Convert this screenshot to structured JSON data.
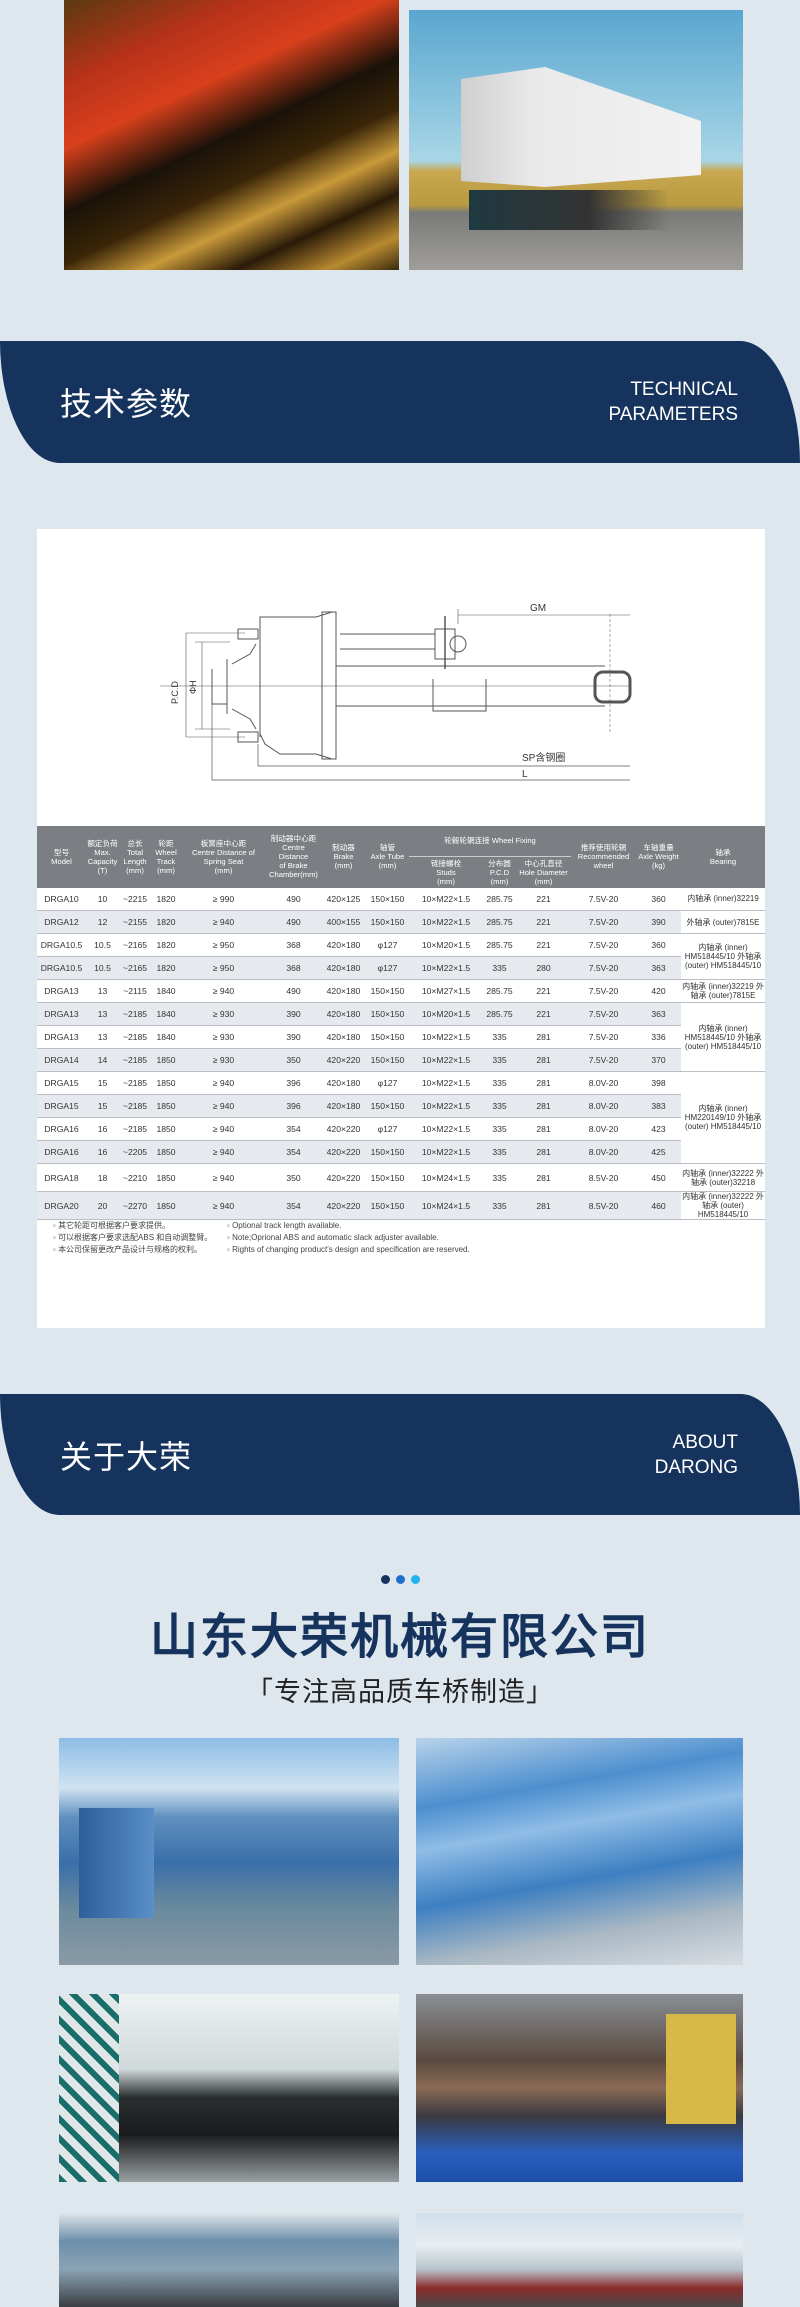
{
  "images": {
    "top_left": "red truck on highway",
    "top_right": "white refrigerated truck"
  },
  "tech_banner": {
    "cn": "技术参数",
    "en_line1": "TECHNICAL",
    "en_line2": "PARAMETERS"
  },
  "drawing": {
    "gm": "GM",
    "pcd": "P.C.D",
    "phi_h": "ΦH",
    "sp": "SP含钢圈",
    "l": "L"
  },
  "table": {
    "headers": {
      "model": [
        "型号",
        "Model"
      ],
      "capacity": [
        "额定负荷",
        "Max.",
        "Capacity",
        "(T)"
      ],
      "length": [
        "总长",
        "Total",
        "Length",
        "(mm)"
      ],
      "track": [
        "轮距",
        "Wheel",
        "Track",
        "(mm)"
      ],
      "spring": [
        "板簧座中心距",
        "Centre Distance of",
        "Spring Seat",
        "(mm)"
      ],
      "chamber": [
        "制动器中心距",
        "Centre Distance",
        "of Brake",
        "Chamber(mm)"
      ],
      "brake": [
        "制动器",
        "Brake",
        "(mm)"
      ],
      "tube": [
        "轴管",
        "Axle Tube",
        "(mm)"
      ],
      "wheel_fixing": "轮毂轮辋连接 Wheel Fixing",
      "studs": [
        "链接螺栓",
        "Studs",
        "(mm)"
      ],
      "pcd": [
        "分布圆",
        "P.C.D",
        "(mm)"
      ],
      "hole": [
        "中心孔直径",
        "Hole Diameter",
        "(mm)"
      ],
      "rec": [
        "推荐使用轮辋",
        "Recommended",
        "wheel"
      ],
      "weight": [
        "车轴重量",
        "Axle Weight",
        "(kg)"
      ],
      "bearing": [
        "轴承",
        "Bearing"
      ]
    },
    "rows": [
      [
        "DRGA10",
        "10",
        "~2215",
        "1820",
        "≥ 990",
        "490",
        "420×125",
        "150×150",
        "10×M22×1.5",
        "285.75",
        "221",
        "7.5V-20",
        "360"
      ],
      [
        "DRGA12",
        "12",
        "~2155",
        "1820",
        "≥ 940",
        "490",
        "400×155",
        "150×150",
        "10×M22×1.5",
        "285.75",
        "221",
        "7.5V-20",
        "390"
      ],
      [
        "DRGA10.5",
        "10.5",
        "~2165",
        "1820",
        "≥ 950",
        "368",
        "420×180",
        "φ127",
        "10×M20×1.5",
        "285.75",
        "221",
        "7.5V-20",
        "360"
      ],
      [
        "DRGA10.5",
        "10.5",
        "~2165",
        "1820",
        "≥ 950",
        "368",
        "420×180",
        "φ127",
        "10×M22×1.5",
        "335",
        "280",
        "7.5V-20",
        "363"
      ],
      [
        "DRGA13",
        "13",
        "~2115",
        "1840",
        "≥ 940",
        "490",
        "420×180",
        "150×150",
        "10×M27×1.5",
        "285.75",
        "221",
        "7.5V-20",
        "420"
      ],
      [
        "DRGA13",
        "13",
        "~2185",
        "1840",
        "≥ 930",
        "390",
        "420×180",
        "150×150",
        "10×M20×1.5",
        "285.75",
        "221",
        "7.5V-20",
        "363"
      ],
      [
        "DRGA13",
        "13",
        "~2185",
        "1840",
        "≥ 930",
        "390",
        "420×180",
        "150×150",
        "10×M22×1.5",
        "335",
        "281",
        "7.5V-20",
        "336"
      ],
      [
        "DRGA14",
        "14",
        "~2185",
        "1850",
        "≥ 930",
        "350",
        "420×220",
        "150×150",
        "10×M22×1.5",
        "335",
        "281",
        "7.5V-20",
        "370"
      ],
      [
        "DRGA15",
        "15",
        "~2185",
        "1850",
        "≥ 940",
        "396",
        "420×180",
        "φ127",
        "10×M22×1.5",
        "335",
        "281",
        "8.0V-20",
        "398"
      ],
      [
        "DRGA15",
        "15",
        "~2185",
        "1850",
        "≥ 940",
        "396",
        "420×180",
        "150×150",
        "10×M22×1.5",
        "335",
        "281",
        "8.0V-20",
        "383"
      ],
      [
        "DRGA16",
        "16",
        "~2185",
        "1850",
        "≥ 940",
        "354",
        "420×220",
        "φ127",
        "10×M22×1.5",
        "335",
        "281",
        "8.0V-20",
        "423"
      ],
      [
        "DRGA16",
        "16",
        "~2205",
        "1850",
        "≥ 940",
        "354",
        "420×220",
        "150×150",
        "10×M22×1.5",
        "335",
        "281",
        "8.0V-20",
        "425"
      ],
      [
        "DRGA18",
        "18",
        "~2210",
        "1850",
        "≥ 940",
        "350",
        "420×220",
        "150×150",
        "10×M24×1.5",
        "335",
        "281",
        "8.5V-20",
        "450"
      ],
      [
        "DRGA20",
        "20",
        "~2270",
        "1850",
        "≥ 940",
        "354",
        "420×220",
        "150×150",
        "10×M24×1.5",
        "335",
        "281",
        "8.5V-20",
        "460"
      ]
    ],
    "bearings": [
      {
        "start": 0,
        "span": 1,
        "text": "内轴承 (inner)32219"
      },
      {
        "start": 1,
        "span": 1,
        "text": "外轴承 (outer)7815E"
      },
      {
        "start": 2,
        "span": 2,
        "text": "内轴承 (inner) HM518445/10 外轴承 (outer) HM518445/10"
      },
      {
        "start": 4,
        "span": 1,
        "text": "内轴承 (inner)32219 外轴承 (outer)7815E"
      },
      {
        "start": 5,
        "span": 3,
        "text": "内轴承 (inner) HM518445/10 外轴承 (outer) HM518445/10"
      },
      {
        "start": 8,
        "span": 4,
        "text": "内轴承 (inner) HM220149/10 外轴承 (outer) HM518445/10"
      },
      {
        "start": 12,
        "span": 1,
        "text": "内轴承 (inner)32222 外轴承 (outer)32218"
      },
      {
        "start": 13,
        "span": 1,
        "text": "内轴承 (inner)32222 外轴承 (outer) HM518445/10"
      }
    ]
  },
  "notes": {
    "cn": [
      "其它轮距可根据客户要求提供。",
      "可以根据客户要求选配ABS 和自动调整臂。",
      "本公司保留更改产品设计与规格的权利。"
    ],
    "en": [
      "Optional track length available.",
      "Note;Oprional ABS and automatic slack adjuster available.",
      "Rights of changing product's design and specification are reserved."
    ]
  },
  "about_banner": {
    "cn": "关于大荣",
    "en_line1": "ABOUT",
    "en_line2": "DARONG"
  },
  "company": {
    "name": "山东大荣机械有限公司",
    "slogan": "「专注高品质车桥制造」",
    "dot_colors": [
      "#15335c",
      "#1f6fd1",
      "#1fb4f0"
    ]
  },
  "colors": {
    "banner": "#15335c",
    "background": "#dfe7ee",
    "table_header": "#7b7f83"
  }
}
